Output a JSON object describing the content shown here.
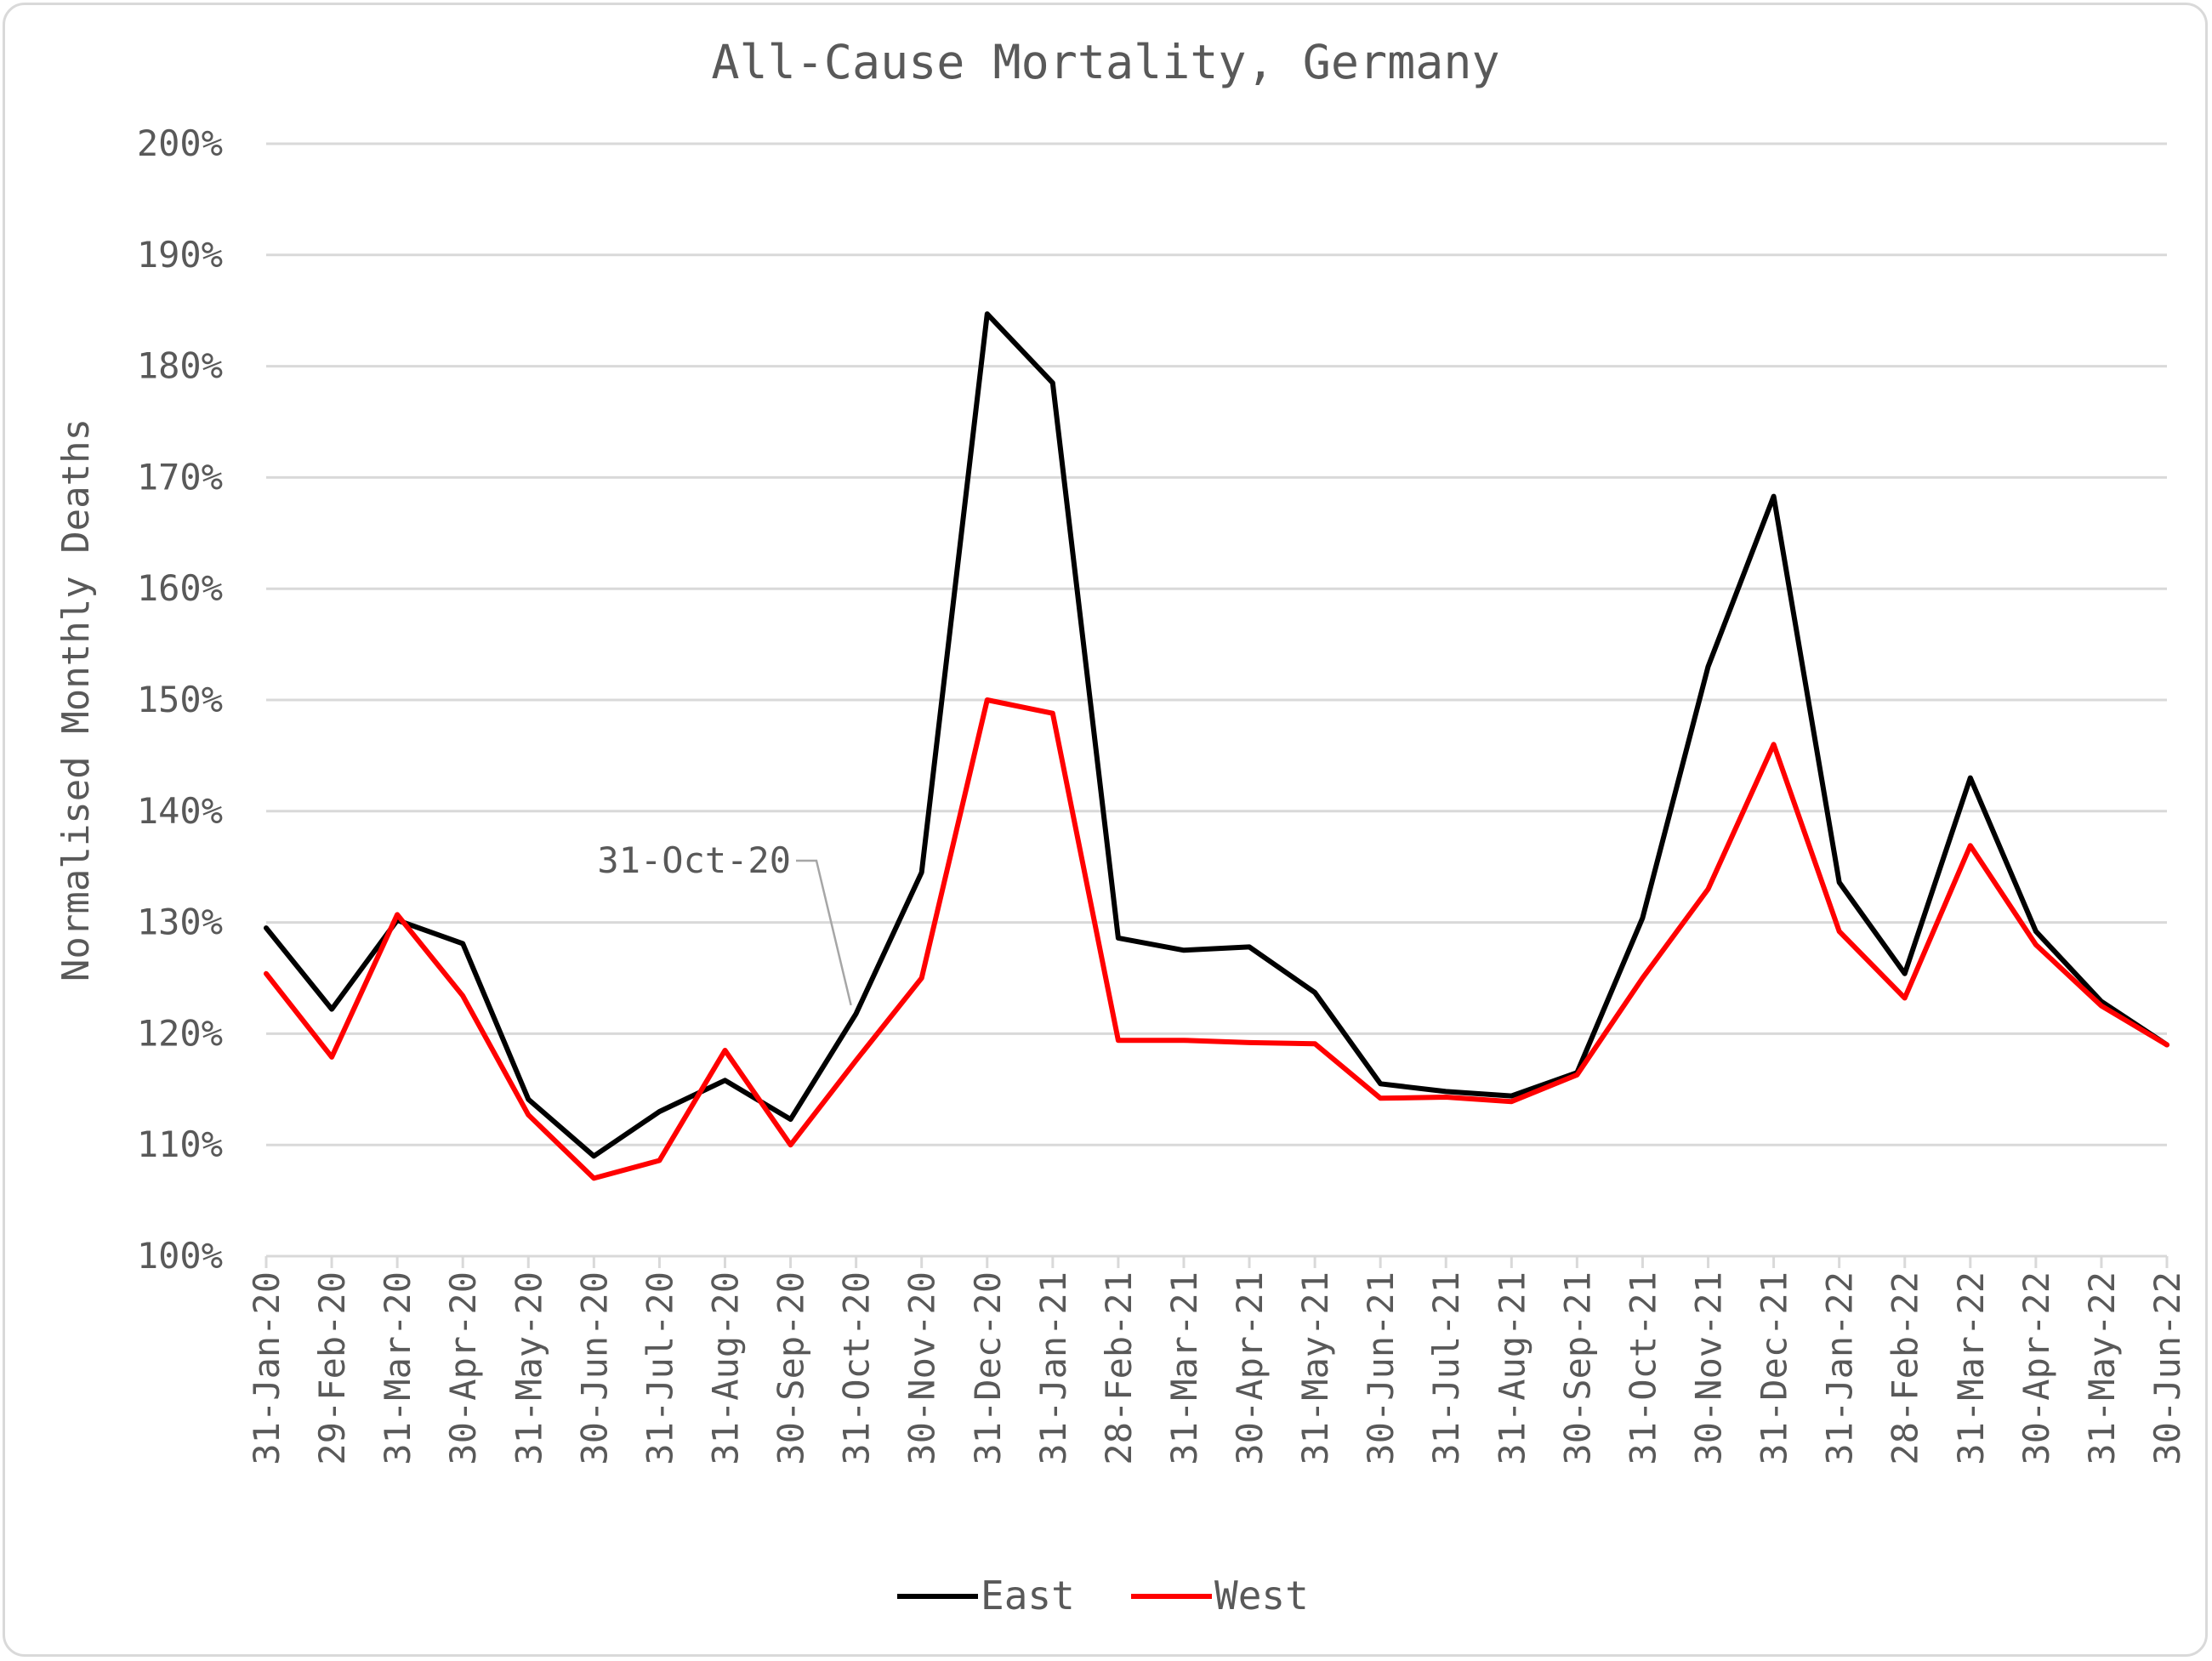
{
  "chart_data": {
    "type": "line",
    "title": "All-Cause Mortality, Germany",
    "ylabel": "Normalised Monthly Deaths",
    "xlabel": "",
    "ylim": [
      100,
      200
    ],
    "y_ticks": [
      "100%",
      "110%",
      "120%",
      "130%",
      "140%",
      "150%",
      "160%",
      "170%",
      "180%",
      "190%",
      "200%"
    ],
    "grid": true,
    "legend_position": "bottom",
    "categories": [
      "31-Jan-20",
      "29-Feb-20",
      "31-Mar-20",
      "30-Apr-20",
      "31-May-20",
      "30-Jun-20",
      "31-Jul-20",
      "31-Aug-20",
      "30-Sep-20",
      "31-Oct-20",
      "30-Nov-20",
      "31-Dec-20",
      "31-Jan-21",
      "28-Feb-21",
      "31-Mar-21",
      "30-Apr-21",
      "31-May-21",
      "30-Jun-21",
      "31-Jul-21",
      "31-Aug-21",
      "30-Sep-21",
      "31-Oct-21",
      "30-Nov-21",
      "31-Dec-21",
      "31-Jan-22",
      "28-Feb-22",
      "31-Mar-22",
      "30-Apr-22",
      "31-May-22",
      "30-Jun-22"
    ],
    "series": [
      {
        "name": "East",
        "color": "#000000",
        "values": [
          129.5,
          122.2,
          130.2,
          128.1,
          114.1,
          109.0,
          113.0,
          115.8,
          112.3,
          121.8,
          134.5,
          184.7,
          178.5,
          128.6,
          127.5,
          127.8,
          123.7,
          115.5,
          114.8,
          114.4,
          116.5,
          130.4,
          153.0,
          168.3,
          133.6,
          125.4,
          143.0,
          129.2,
          122.9,
          119.0
        ]
      },
      {
        "name": "West",
        "color": "#ff0000",
        "values": [
          125.4,
          117.9,
          130.7,
          123.4,
          112.7,
          107.0,
          108.6,
          118.5,
          110.0,
          117.6,
          125.0,
          150.0,
          148.8,
          119.4,
          119.4,
          119.2,
          119.1,
          114.2,
          114.3,
          113.9,
          116.3,
          125.0,
          133.0,
          146.0,
          129.2,
          123.2,
          136.9,
          128.0,
          122.5,
          119.0
        ]
      }
    ],
    "annotations": [
      {
        "text": "31-Oct-20",
        "category": "31-Oct-20",
        "series": "East"
      }
    ]
  }
}
